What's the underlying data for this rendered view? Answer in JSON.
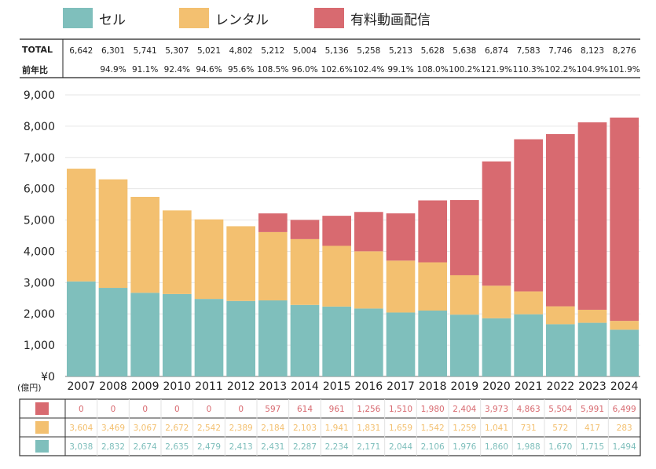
{
  "chart_data": {
    "type": "bar",
    "stacked": true,
    "categories": [
      "2007",
      "2008",
      "2009",
      "2010",
      "2011",
      "2012",
      "2013",
      "2014",
      "2015",
      "2016",
      "2017",
      "2018",
      "2019",
      "2020",
      "2021",
      "2022",
      "2023",
      "2024"
    ],
    "series": [
      {
        "name": "セル",
        "color": "#7fbfbc",
        "values": [
          3038,
          2832,
          2674,
          2635,
          2479,
          2413,
          2431,
          2287,
          2234,
          2171,
          2044,
          2106,
          1976,
          1860,
          1988,
          1670,
          1715,
          1494
        ],
        "labels": [
          "3,038",
          "2,832",
          "2,674",
          "2,635",
          "2,479",
          "2,413",
          "2,431",
          "2,287",
          "2,234",
          "2,171",
          "2,044",
          "2,106",
          "1,976",
          "1,860",
          "1,988",
          "1,670",
          "1,715",
          "1,494"
        ]
      },
      {
        "name": "レンタル",
        "color": "#f3c070",
        "values": [
          3604,
          3469,
          3067,
          2672,
          2542,
          2389,
          2184,
          2103,
          1941,
          1831,
          1659,
          1542,
          1259,
          1041,
          731,
          572,
          417,
          283
        ],
        "labels": [
          "3,604",
          "3,469",
          "3,067",
          "2,672",
          "2,542",
          "2,389",
          "2,184",
          "2,103",
          "1,941",
          "1,831",
          "1,659",
          "1,542",
          "1,259",
          "1,041",
          "731",
          "572",
          "417",
          "283"
        ]
      },
      {
        "name": "有料動画配信",
        "color": "#d86a70",
        "values": [
          0,
          0,
          0,
          0,
          0,
          0,
          597,
          614,
          961,
          1256,
          1510,
          1980,
          2404,
          3973,
          4863,
          5504,
          5991,
          6499
        ],
        "labels": [
          "0",
          "0",
          "0",
          "0",
          "0",
          "0",
          "597",
          "614",
          "961",
          "1,256",
          "1,510",
          "1,980",
          "2,404",
          "3,973",
          "4,863",
          "5,504",
          "5,991",
          "6,499"
        ]
      }
    ],
    "total_label": "TOTAL",
    "totals": [
      "6,642",
      "6,301",
      "5,741",
      "5,307",
      "5,021",
      "4,802",
      "5,212",
      "5,004",
      "5,136",
      "5,258",
      "5,213",
      "5,628",
      "5,638",
      "6,874",
      "7,583",
      "7,746",
      "8,123",
      "8,276"
    ],
    "yoy_label": "前年比",
    "yoy": [
      "",
      "94.9%",
      "91.1%",
      "92.4%",
      "94.6%",
      "95.6%",
      "108.5%",
      "96.0%",
      "102.6%",
      "102.4%",
      "99.1%",
      "108.0%",
      "100.2%",
      "121.9%",
      "110.3%",
      "102.2%",
      "104.9%",
      "101.9%"
    ],
    "ylim": [
      0,
      9000
    ],
    "yticks": [
      0,
      1000,
      2000,
      3000,
      4000,
      5000,
      6000,
      7000,
      8000,
      9000
    ],
    "ytick_labels": [
      "¥0",
      "1,000",
      "2,000",
      "3,000",
      "4,000",
      "5,000",
      "6,000",
      "7,000",
      "8,000",
      "9,000"
    ],
    "ylabel": "(億円)",
    "legend_position": "top-left"
  }
}
